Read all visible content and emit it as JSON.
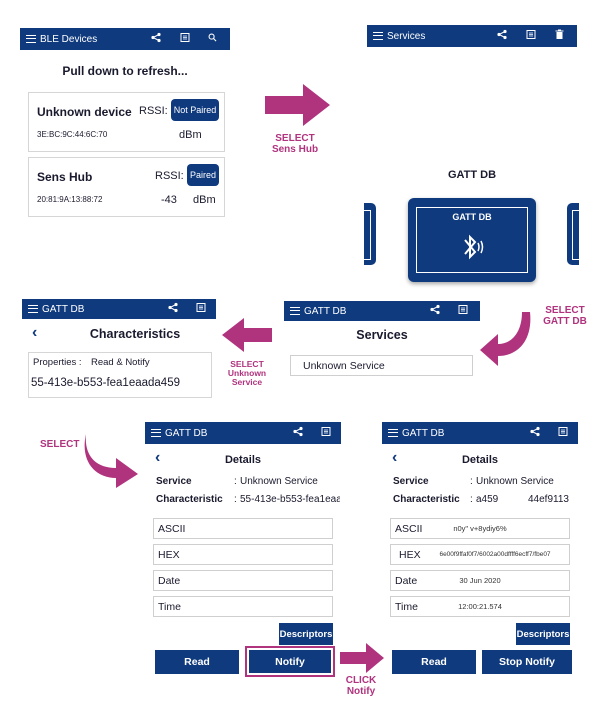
{
  "panel1": {
    "title": "BLE Devices",
    "refresh_hint": "Pull down to refresh...",
    "devices": [
      {
        "name": "Unknown device",
        "rssi_label": "RSSI:",
        "badge": "Not Paired",
        "address": "3E:BC:9C:44:6C:70",
        "rssi_value": "",
        "unit": "dBm"
      },
      {
        "name": "Sens Hub",
        "rssi_label": "RSSI:",
        "badge": "Paired",
        "address": "20:81:9A:13:88:72",
        "rssi_value": "-43",
        "unit": "dBm"
      }
    ]
  },
  "panel2": {
    "title": "Services",
    "heading": "GATT DB",
    "tile_label": "GATT DB"
  },
  "panel3": {
    "title": "GATT DB",
    "heading": "Services",
    "service": "Unknown Service"
  },
  "panel4": {
    "title": "GATT DB",
    "heading": "Characteristics",
    "properties_label": "Properties :",
    "properties_value": "Read & Notify",
    "uuid": "55-413e-b553-fea1eaada459"
  },
  "panel5": {
    "title": "GATT DB",
    "heading": "Details",
    "service_label": "Service",
    "service_value": "Unknown Service",
    "char_label": "Characteristic",
    "char_value": "55-413e-b553-fea1eaa",
    "fields": [
      "ASCII",
      "HEX",
      "Date",
      "Time"
    ],
    "descriptors": "Descriptors",
    "read": "Read",
    "notify": "Notify"
  },
  "panel6": {
    "title": "GATT DB",
    "heading": "Details",
    "service_label": "Service",
    "service_value": "Unknown Service",
    "char_label": "Characteristic",
    "char_value_a": "a459",
    "char_value_b": "44ef9113",
    "fields": [
      {
        "label": "ASCII",
        "value": "n0y\" v+8ydiy6%"
      },
      {
        "label": "HEX",
        "value": "6e00f9ffaf0f7/6002a00dffff6ecff7/fbe07"
      },
      {
        "label": "Date",
        "value": "30 Jun 2020"
      },
      {
        "label": "Time",
        "value": "12:00:21.574"
      }
    ],
    "descriptors": "Descriptors",
    "read": "Read",
    "stop_notify": "Stop Notify"
  },
  "annotations": {
    "select_sens_hub": [
      "SELECT",
      "Sens Hub"
    ],
    "select_gatt_db": [
      "SELECT",
      "GATT DB"
    ],
    "select_unknown_service": [
      "SELECT",
      "Unknown",
      "Service"
    ],
    "select": "SELECT",
    "click_notify": [
      "CLICK",
      "Notify"
    ]
  },
  "icons": {
    "menu": "hamburger-icon",
    "share": "share-icon",
    "list": "list-icon",
    "search": "search-icon",
    "trash": "trash-icon",
    "back": "chevron-left-icon",
    "bluetooth": "bluetooth-icon"
  },
  "colors": {
    "bar": "#0f3a7d",
    "accent": "#b0337e"
  }
}
